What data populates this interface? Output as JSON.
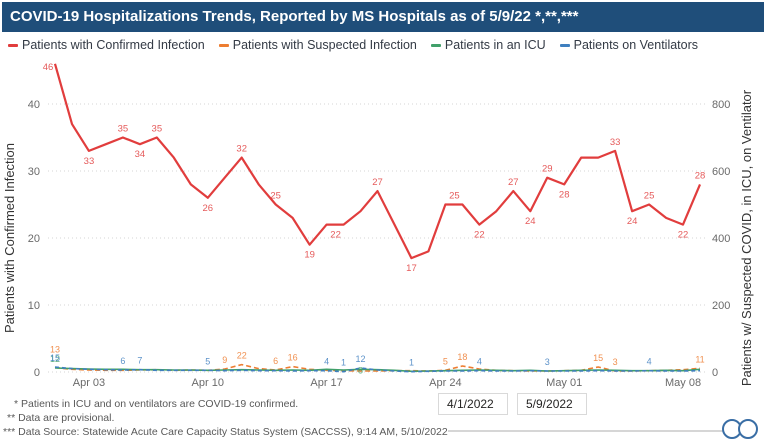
{
  "title": "COVID-19 Hospitalizations Trends, Reported by MS Hospitals as of 5/9/22 *,**,***",
  "colors": {
    "title_bar": "#1f4e7a",
    "red": "#e13d3d",
    "orange": "#ed7d31",
    "green": "#41a06a",
    "blue": "#3f7fbf",
    "grid": "#d4d4d4",
    "axis_text": "#6a6a6a",
    "axis_title": "#333333"
  },
  "chart_data": {
    "type": "line",
    "title": "COVID-19 Hospitalizations Trends, Reported by MS Hospitals as of 5/9/22 *,**,***",
    "x_dates": [
      "Apr 01",
      "Apr 02",
      "Apr 03",
      "Apr 04",
      "Apr 05",
      "Apr 06",
      "Apr 07",
      "Apr 08",
      "Apr 09",
      "Apr 10",
      "Apr 11",
      "Apr 12",
      "Apr 13",
      "Apr 14",
      "Apr 15",
      "Apr 16",
      "Apr 17",
      "Apr 18",
      "Apr 19",
      "Apr 20",
      "Apr 21",
      "Apr 22",
      "Apr 23",
      "Apr 24",
      "Apr 25",
      "Apr 26",
      "Apr 27",
      "Apr 28",
      "Apr 29",
      "Apr 30",
      "May 01",
      "May 02",
      "May 03",
      "May 04",
      "May 05",
      "May 06",
      "May 07",
      "May 08",
      "May 09"
    ],
    "axes": {
      "left": {
        "title": "Patients with Confirmed Infection",
        "ticks": [
          0,
          10,
          20,
          30,
          40
        ],
        "max": 46
      },
      "right": {
        "title": "Patients w/ Suspected COVID, in ICU, on Ventilator",
        "ticks": [
          0,
          200,
          400,
          600,
          800
        ],
        "max": 920
      },
      "x": {
        "tick_labels": [
          "Apr 03",
          "Apr 10",
          "Apr 17",
          "Apr 24",
          "May 01",
          "May 08"
        ],
        "tick_indices": [
          2,
          9,
          16,
          23,
          30,
          37
        ]
      }
    },
    "series": [
      {
        "name": "Patients with Confirmed Infection",
        "axis": "left",
        "color": "#e13d3d",
        "dash": null,
        "width": 2.2,
        "values": [
          46,
          37,
          33,
          34,
          35,
          34,
          35,
          32,
          28,
          26,
          29,
          32,
          28,
          25,
          23,
          19,
          22,
          22,
          24,
          27,
          22,
          17,
          18,
          25,
          25,
          22,
          24,
          27,
          24,
          29,
          28,
          32,
          32,
          33,
          24,
          25,
          23,
          22,
          28
        ],
        "labels": [
          {
            "i": 0,
            "v": 46,
            "p": "b",
            "dx": -7,
            "dy": -7
          },
          {
            "i": 2,
            "v": 33,
            "p": "b"
          },
          {
            "i": 4,
            "v": 35,
            "p": "a"
          },
          {
            "i": 5,
            "v": 34,
            "p": "b"
          },
          {
            "i": 6,
            "v": 35,
            "p": "a"
          },
          {
            "i": 9,
            "v": 26,
            "p": "b"
          },
          {
            "i": 11,
            "v": 32,
            "p": "a"
          },
          {
            "i": 13,
            "v": 25,
            "p": "a"
          },
          {
            "i": 15,
            "v": 19,
            "p": "b"
          },
          {
            "i": 16,
            "v": 22,
            "p": "b",
            "dx": 9
          },
          {
            "i": 19,
            "v": 27,
            "p": "a"
          },
          {
            "i": 21,
            "v": 17,
            "p": "b"
          },
          {
            "i": 23,
            "v": 25,
            "p": "a",
            "dx": 9
          },
          {
            "i": 25,
            "v": 22,
            "p": "b"
          },
          {
            "i": 27,
            "v": 27,
            "p": "a"
          },
          {
            "i": 28,
            "v": 24,
            "p": "b"
          },
          {
            "i": 29,
            "v": 29,
            "p": "a"
          },
          {
            "i": 30,
            "v": 28,
            "p": "b"
          },
          {
            "i": 33,
            "v": 33,
            "p": "a"
          },
          {
            "i": 34,
            "v": 24,
            "p": "b"
          },
          {
            "i": 35,
            "v": 25,
            "p": "a"
          },
          {
            "i": 37,
            "v": 22,
            "p": "b"
          },
          {
            "i": 38,
            "v": 28,
            "p": "a"
          }
        ]
      },
      {
        "name": "Patients with Suspected Infection",
        "axis": "right",
        "color": "#ed7d31",
        "dash": "5 3",
        "width": 1.6,
        "values": [
          13,
          8,
          6,
          5,
          5,
          6,
          7,
          5,
          6,
          5,
          9,
          22,
          10,
          6,
          16,
          8,
          5,
          4,
          3,
          3,
          4,
          4,
          3,
          5,
          18,
          9,
          5,
          4,
          3,
          3,
          4,
          5,
          15,
          3,
          3,
          4,
          5,
          7,
          11
        ],
        "labels": [
          {
            "i": 0,
            "v": 13,
            "dy": -9
          },
          {
            "i": 10,
            "v": 9
          },
          {
            "i": 11,
            "v": 22
          },
          {
            "i": 13,
            "v": 6
          },
          {
            "i": 14,
            "v": 16
          },
          {
            "i": 23,
            "v": 5
          },
          {
            "i": 24,
            "v": 18
          },
          {
            "i": 32,
            "v": 15
          },
          {
            "i": 33,
            "v": 3
          },
          {
            "i": 38,
            "v": 11
          }
        ]
      },
      {
        "name": "Patients in an ICU",
        "axis": "right",
        "color": "#41a06a",
        "dash": null,
        "width": 1.6,
        "values": [
          12,
          10,
          9,
          8,
          8,
          7,
          7,
          6,
          6,
          5,
          6,
          7,
          6,
          5,
          6,
          5,
          8,
          6,
          8,
          7,
          5,
          2,
          3,
          4,
          5,
          6,
          5,
          4,
          5,
          3,
          4,
          5,
          6,
          5,
          4,
          4,
          5,
          4,
          8
        ],
        "labels": [
          {
            "i": 0,
            "v": 12
          },
          {
            "i": 18,
            "v": 8,
            "dy": 10
          }
        ]
      },
      {
        "name": "Patients on Ventilators",
        "axis": "right",
        "color": "#3f7fbf",
        "dash": "4 3",
        "width": 1.6,
        "values": [
          15,
          10,
          8,
          7,
          6,
          7,
          5,
          5,
          5,
          5,
          4,
          5,
          4,
          4,
          3,
          4,
          4,
          1,
          12,
          6,
          3,
          1,
          2,
          3,
          3,
          4,
          3,
          3,
          4,
          3,
          3,
          3,
          4,
          3,
          3,
          4,
          3,
          3,
          4
        ],
        "labels": [
          {
            "i": 0,
            "v": 15
          },
          {
            "i": 4,
            "v": 6
          },
          {
            "i": 5,
            "v": 7
          },
          {
            "i": 9,
            "v": 5
          },
          {
            "i": 16,
            "v": 4
          },
          {
            "i": 17,
            "v": 1
          },
          {
            "i": 18,
            "v": 12
          },
          {
            "i": 21,
            "v": 1
          },
          {
            "i": 25,
            "v": 4
          },
          {
            "i": 29,
            "v": 3
          },
          {
            "i": 35,
            "v": 4
          }
        ]
      }
    ],
    "legend_position": "top"
  },
  "footnotes": {
    "note1": "* Patients in ICU and on ventilators are COVID-19 confirmed.",
    "note2": "** Data are provisional.",
    "note3": "*** Data Source: Statewide Acute Care Capacity Status System (SACCSS), 9:14 AM, 5/10/2022"
  },
  "date_range": {
    "start": "4/1/2022",
    "end": "5/9/2022"
  }
}
